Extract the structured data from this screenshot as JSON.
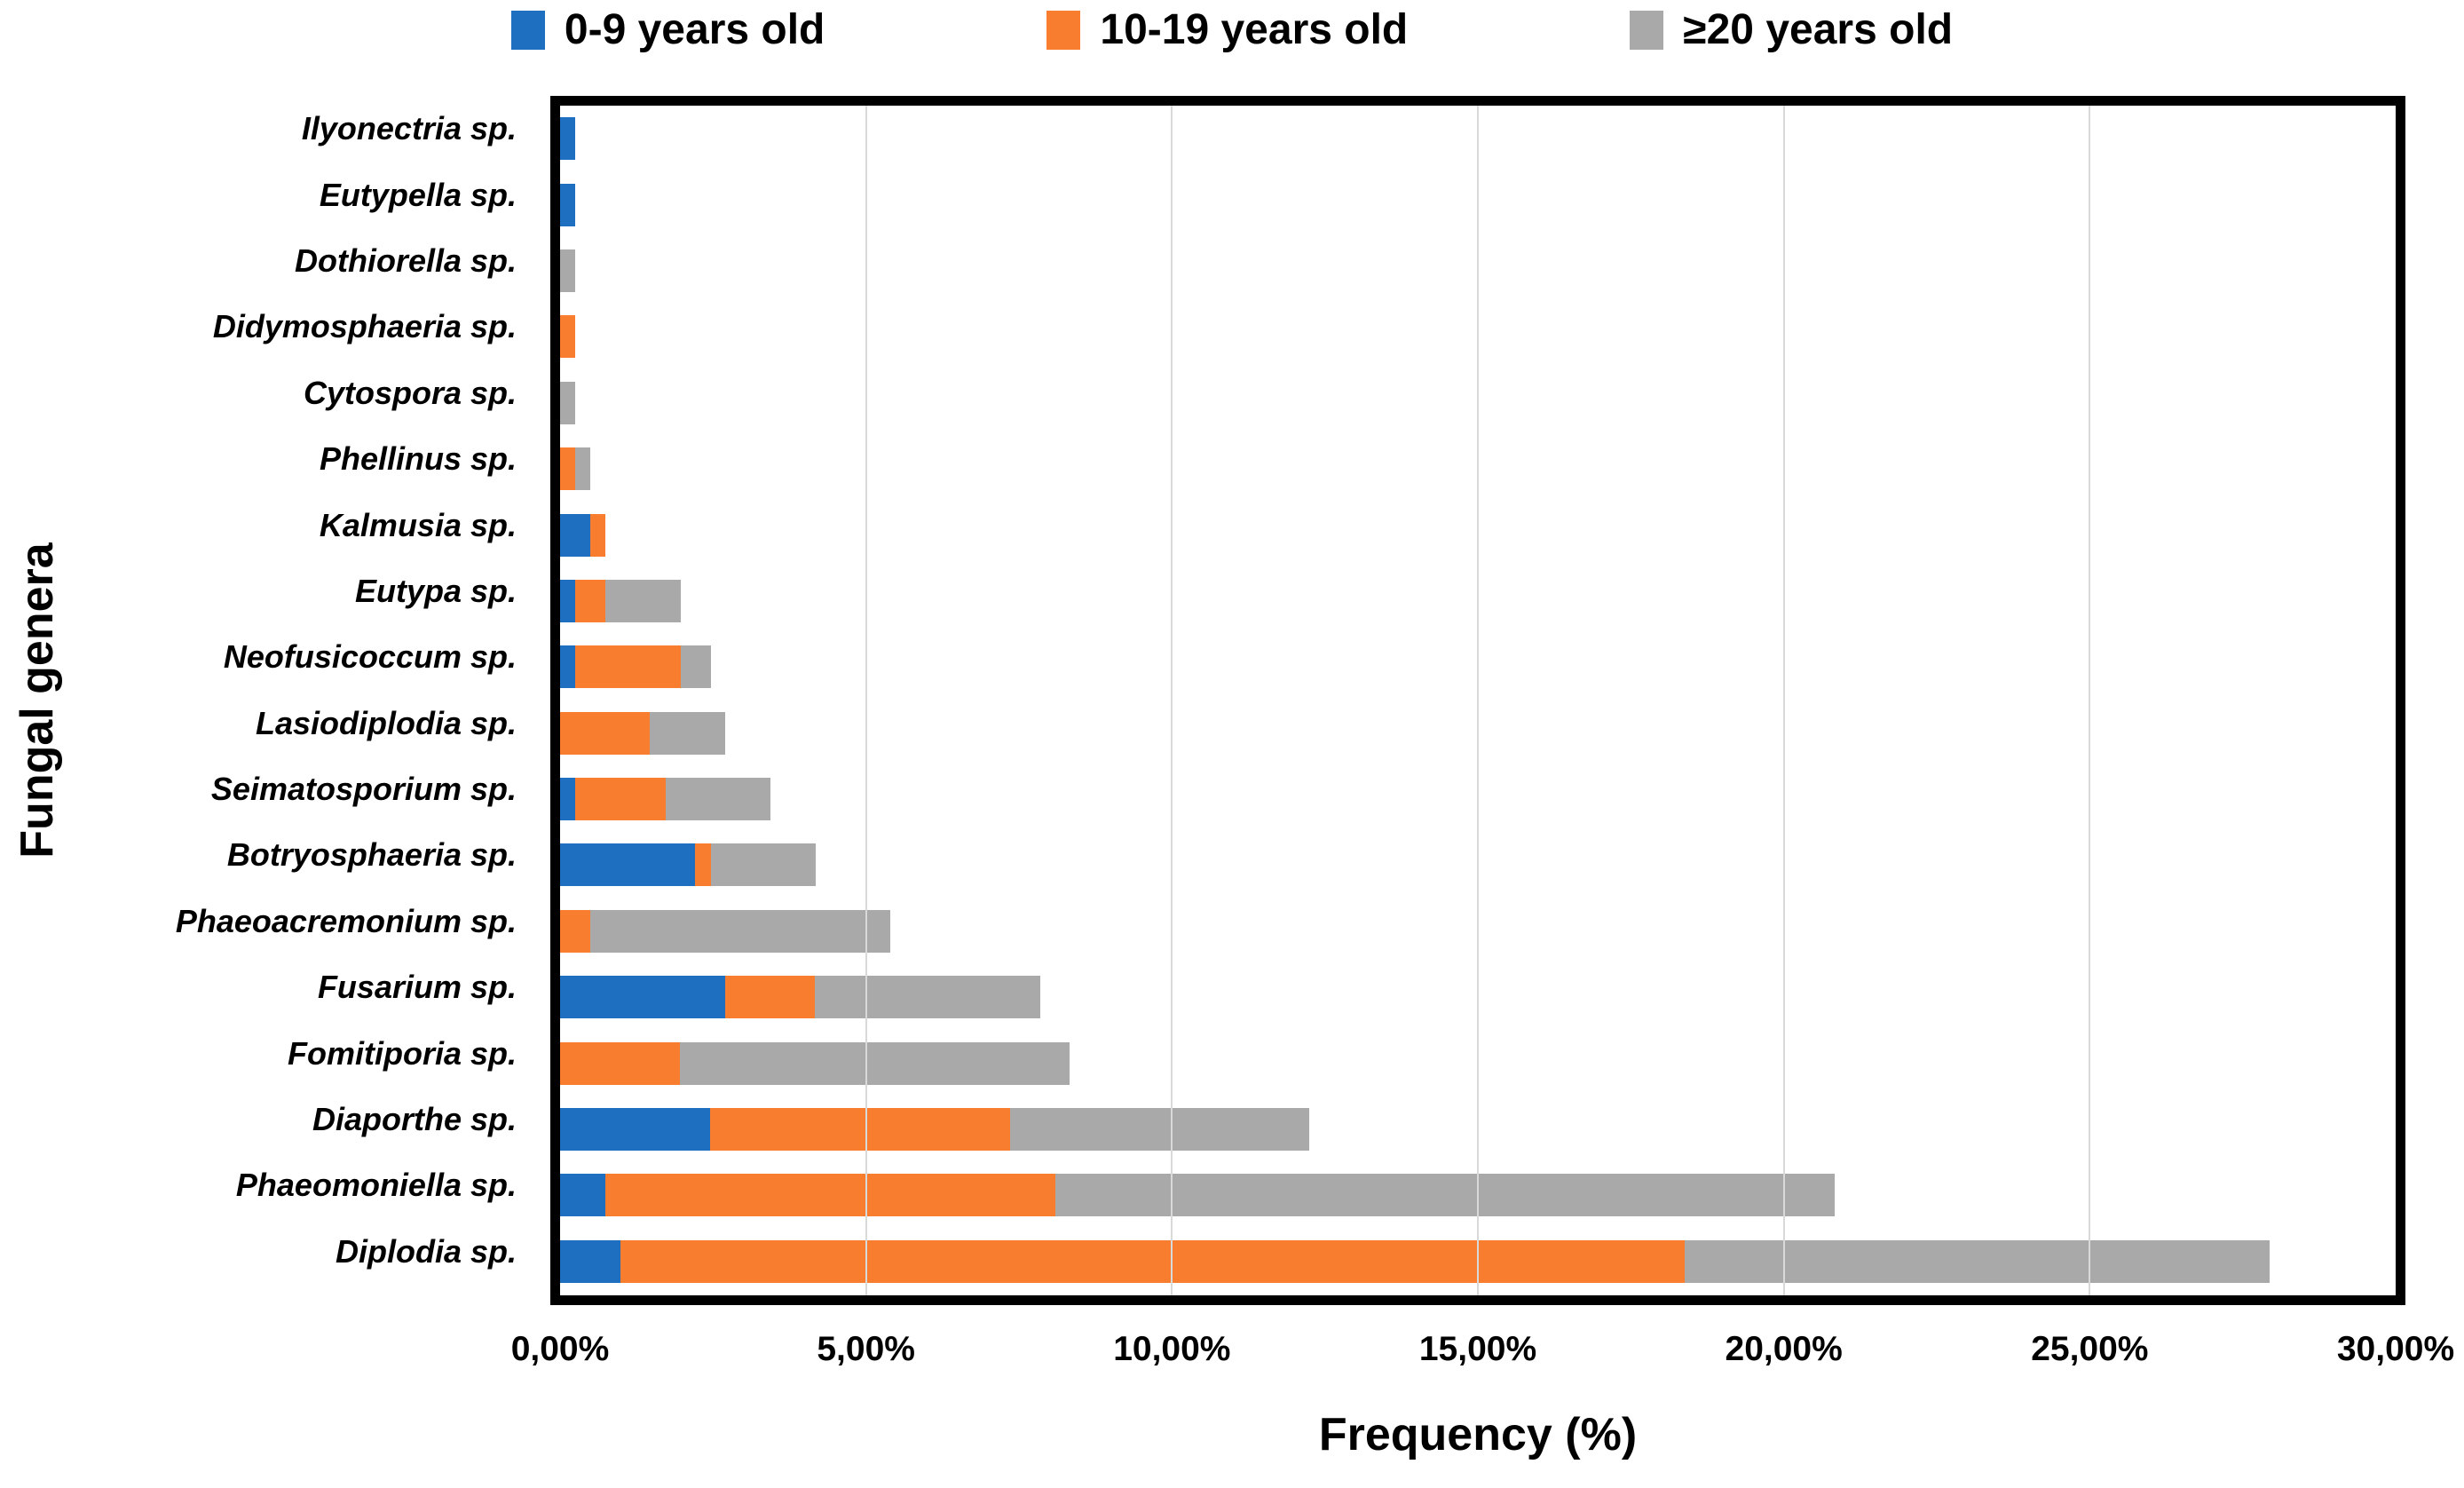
{
  "legend": {
    "items": [
      {
        "label": "0-9 years old",
        "color": "#1E6FC0"
      },
      {
        "label": "10-19 years old",
        "color": "#F97D2E"
      },
      {
        "label": "≥20 years old",
        "color": "#A9A9A9"
      }
    ]
  },
  "chart_data": {
    "type": "bar",
    "orientation": "horizontal",
    "stacked": true,
    "title": "",
    "xlabel": "Frequency (%)",
    "ylabel": "Fungal genera",
    "xlim": [
      0,
      30
    ],
    "grid": "vertical-gridlines",
    "legend_position": "top",
    "x_ticks": [
      "0,00%",
      "5,00%",
      "10,00%",
      "15,00%",
      "20,00%",
      "25,00%",
      "30,00%"
    ],
    "x_tick_values": [
      0,
      5,
      10,
      15,
      20,
      25,
      30
    ],
    "categories": [
      "Ilyonectria sp.",
      "Eutypella sp.",
      "Dothiorella sp.",
      "Didymosphaeria sp.",
      "Cytospora sp.",
      "Phellinus sp.",
      "Kalmusia sp.",
      "Eutypa sp.",
      "Neofusicoccum sp.",
      "Lasiodiplodia sp.",
      "Seimatosporium sp.",
      "Botryosphaeria sp.",
      "Phaeoacremonium sp.",
      "Fusarium sp.",
      "Fomitiporia sp.",
      "Diaporthe sp.",
      "Phaeomoniella sp.",
      "Diplodia sp."
    ],
    "series": [
      {
        "name": "0-9 years old",
        "color": "#1E6FC0",
        "values": [
          0.25,
          0.25,
          0,
          0,
          0,
          0,
          0.49,
          0.25,
          0.25,
          0,
          0.25,
          2.21,
          0,
          2.7,
          0,
          2.45,
          0.74,
          0.98
        ]
      },
      {
        "name": "10-19 years old",
        "color": "#F97D2E",
        "values": [
          0,
          0,
          0,
          0.25,
          0,
          0.25,
          0.25,
          0.49,
          1.72,
          1.47,
          1.47,
          0.25,
          0.49,
          1.47,
          1.96,
          4.9,
          7.35,
          17.4
        ]
      },
      {
        "name": "≥20 years old",
        "color": "#A9A9A9",
        "values": [
          0,
          0,
          0.25,
          0,
          0.25,
          0.25,
          0,
          1.23,
          0.49,
          1.23,
          1.72,
          1.72,
          4.9,
          3.68,
          6.37,
          4.9,
          12.74,
          9.56
        ]
      }
    ]
  }
}
